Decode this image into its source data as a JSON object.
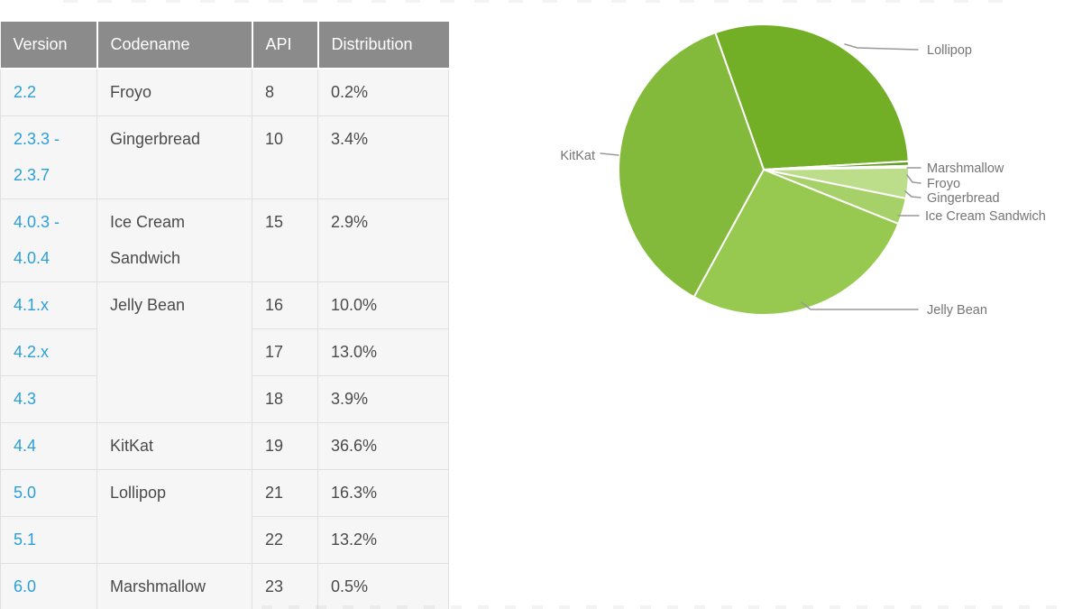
{
  "colors": {
    "header_bg": "#8b8b8b",
    "header_text": "#ffffff",
    "row_bg": "#f6f6f6",
    "row_border": "#e0e0e0",
    "version_link": "#2ba0d8",
    "body_text": "#4b4b4b",
    "pie_label_text": "#757575",
    "leader_line": "#999999"
  },
  "chart_data": [
    {
      "type": "table",
      "headers": [
        "Version",
        "Codename",
        "API",
        "Distribution"
      ],
      "rows": [
        {
          "version": "2.2",
          "codename": "Froyo",
          "api": "8",
          "distribution": "0.2%"
        },
        {
          "version": "2.3.3 -\n2.3.7",
          "codename": "Gingerbread",
          "api": "10",
          "distribution": "3.4%"
        },
        {
          "version": "4.0.3 -\n4.0.4",
          "codename": "Ice Cream Sandwich",
          "api": "15",
          "distribution": "2.9%"
        },
        {
          "version": "4.1.x",
          "codename": "Jelly Bean",
          "api": "16",
          "distribution": "10.0%"
        },
        {
          "version": "4.2.x",
          "api": "17",
          "distribution": "13.0%"
        },
        {
          "version": "4.3",
          "api": "18",
          "distribution": "3.9%"
        },
        {
          "version": "4.4",
          "codename": "KitKat",
          "api": "19",
          "distribution": "36.6%"
        },
        {
          "version": "5.0",
          "codename": "Lollipop",
          "api": "21",
          "distribution": "16.3%"
        },
        {
          "version": "5.1",
          "api": "22",
          "distribution": "13.2%"
        },
        {
          "version": "6.0",
          "codename": "Marshmallow",
          "api": "23",
          "distribution": "0.5%"
        }
      ]
    },
    {
      "type": "pie",
      "start_angle_deg": -19.5,
      "direction": "clockwise",
      "legend_position": "leader-labels",
      "slices": [
        {
          "label": "Lollipop",
          "value": 29.5,
          "color": "#73ae27"
        },
        {
          "label": "Marshmallow",
          "value": 0.5,
          "color": "#659d23"
        },
        {
          "label": "Froyo",
          "value": 0.2,
          "color": "#c9e59f"
        },
        {
          "label": "Gingerbread",
          "value": 3.4,
          "color": "#bcdd8a"
        },
        {
          "label": "Ice Cream Sandwich",
          "value": 2.9,
          "color": "#a6d169"
        },
        {
          "label": "Jelly Bean",
          "value": 26.9,
          "color": "#97c850"
        },
        {
          "label": "KitKat",
          "value": 36.6,
          "color": "#84ba3c"
        }
      ]
    }
  ]
}
